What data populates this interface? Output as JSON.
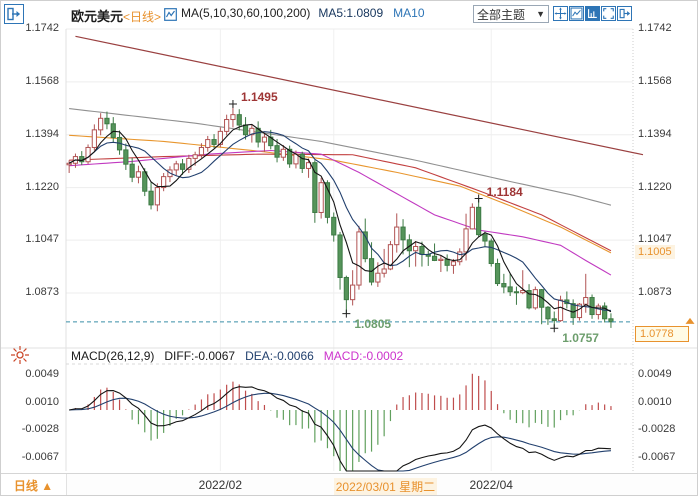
{
  "header": {
    "symbol": "欧元美元",
    "period_tag": "<日线>",
    "ma_settings": "MA(5,10,30,60,100,200)",
    "ma5_label": "MA5:1.0809",
    "ma10_label": "MA10",
    "theme_label": "全部主题",
    "theme_caret": "▼"
  },
  "toolbar": {
    "icons": [
      {
        "name": "move-tool-icon"
      },
      {
        "name": "line-chart-box-icon"
      },
      {
        "name": "axis-chart-icon",
        "selected": true
      },
      {
        "name": "fullscreen-icon"
      },
      {
        "name": "exit-panel-icon"
      }
    ]
  },
  "macd_header": {
    "params": "MACD(26,12,9)",
    "diff": "DIFF:-0.0067",
    "dea": "DEA:-0.0066",
    "macd": "MACD:-0.0002"
  },
  "footer": {
    "period_label": "日线 ▲"
  },
  "colors": {
    "accent_blue": "#2e75b6",
    "accent_orange": "#e8922e",
    "up_stroke": "#b05353",
    "down_fill": "#55945a",
    "down_stroke": "#3d7a44",
    "ma5": "#141414",
    "ma10": "#22406e",
    "trendline": "#9a4040",
    "dashed_price_line": "#3a8fa8",
    "macd_pos": "#bf4d4d",
    "macd_neg": "#61a05e",
    "diff_line": "#141414",
    "dea_line": "#22406e",
    "grid": "#ededed",
    "sun_icon": "#cb4729"
  },
  "chart_data": {
    "type": "candlestick",
    "title": "欧元美元 日线",
    "price_ticks": [
      "1.1742",
      "1.1568",
      "1.1394",
      "1.1220",
      "1.1047",
      "1.0873"
    ],
    "price_tick_values": [
      1.1742,
      1.1568,
      1.1394,
      1.122,
      1.1047,
      1.0873
    ],
    "macd_ticks": [
      "0.0049",
      "0.0010",
      "-0.0028",
      "-0.0067"
    ],
    "macd_tick_values": [
      0.0049,
      0.001,
      -0.0028,
      -0.0067
    ],
    "x_axis_labels": [
      {
        "label": "2022/02",
        "tick_index": 24,
        "align": "center",
        "highlight": false
      },
      {
        "label": "2022/03/01 星期二",
        "tick_index": 42,
        "align": "left",
        "highlight": true
      },
      {
        "label": "2022/04",
        "tick_index": 67,
        "align": "center",
        "highlight": false
      }
    ],
    "last_price": 1.0778,
    "last_price_tag": "1.0778",
    "ma100_last": 1.1005,
    "ma100_tag": "1.1005",
    "annotations": [
      {
        "text": "1.1495",
        "index": 26,
        "price": 1.1495,
        "type": "high"
      },
      {
        "text": "1.1184",
        "index": 65,
        "price": 1.1184,
        "type": "high"
      },
      {
        "text": "1.0805",
        "index": 44,
        "price": 1.0805,
        "type": "low"
      },
      {
        "text": "1.0757",
        "index": 77,
        "price": 1.0757,
        "type": "low"
      }
    ],
    "trendline": {
      "points": [
        [
          1,
          1.1718
        ],
        [
          86.5,
          1.1348
        ]
      ]
    },
    "overlays": [
      {
        "name": "MA200",
        "color": "#909090",
        "points": [
          [
            0,
            1.148
          ],
          [
            20,
            1.1432
          ],
          [
            40,
            1.1372
          ],
          [
            55,
            1.131
          ],
          [
            70,
            1.124
          ],
          [
            80,
            1.1195
          ],
          [
            86,
            1.1162
          ]
        ]
      },
      {
        "name": "MA100",
        "color": "#e8962e",
        "points": [
          [
            0,
            1.1392
          ],
          [
            15,
            1.1372
          ],
          [
            30,
            1.134
          ],
          [
            42,
            1.131
          ],
          [
            52,
            1.127
          ],
          [
            62,
            1.1225
          ],
          [
            70,
            1.116
          ],
          [
            78,
            1.109
          ],
          [
            86,
            1.1005
          ]
        ]
      },
      {
        "name": "MA60",
        "color": "#c24040",
        "points": [
          [
            0,
            1.131
          ],
          [
            15,
            1.1322
          ],
          [
            30,
            1.133
          ],
          [
            45,
            1.1328
          ],
          [
            55,
            1.1285
          ],
          [
            65,
            1.121
          ],
          [
            75,
            1.113
          ],
          [
            86,
            1.1012
          ]
        ]
      },
      {
        "name": "MA30",
        "color": "#c13ac1",
        "points": [
          [
            0,
            1.1292
          ],
          [
            10,
            1.1306
          ],
          [
            22,
            1.133
          ],
          [
            32,
            1.1342
          ],
          [
            40,
            1.133
          ],
          [
            46,
            1.127
          ],
          [
            52,
            1.12
          ],
          [
            58,
            1.113
          ],
          [
            65,
            1.108
          ],
          [
            72,
            1.1058
          ],
          [
            78,
            1.103
          ],
          [
            82,
            1.098
          ],
          [
            86,
            1.0932
          ]
        ]
      }
    ],
    "macd_params": [
      26,
      12,
      9
    ],
    "candles": [
      [
        1.1295,
        1.131,
        1.1268,
        1.13
      ],
      [
        1.13,
        1.1332,
        1.1285,
        1.1322
      ],
      [
        1.1322,
        1.134,
        1.1294,
        1.1305
      ],
      [
        1.1305,
        1.1362,
        1.1298,
        1.1352
      ],
      [
        1.1352,
        1.1428,
        1.1342,
        1.141
      ],
      [
        1.141,
        1.1465,
        1.1392,
        1.1448
      ],
      [
        1.1448,
        1.147,
        1.1412,
        1.143
      ],
      [
        1.143,
        1.1452,
        1.1368,
        1.1385
      ],
      [
        1.1385,
        1.1408,
        1.1328,
        1.1344
      ],
      [
        1.1344,
        1.1365,
        1.1278,
        1.1297
      ],
      [
        1.1297,
        1.1318,
        1.1238,
        1.1254
      ],
      [
        1.1254,
        1.1292,
        1.1234,
        1.1272
      ],
      [
        1.1272,
        1.1284,
        1.1192,
        1.1208
      ],
      [
        1.1208,
        1.1238,
        1.1148,
        1.1163
      ],
      [
        1.1163,
        1.1234,
        1.1142,
        1.122
      ],
      [
        1.122,
        1.1268,
        1.1208,
        1.1256
      ],
      [
        1.1256,
        1.129,
        1.1238,
        1.1278
      ],
      [
        1.1278,
        1.1308,
        1.126,
        1.1298
      ],
      [
        1.1298,
        1.1314,
        1.1262,
        1.128
      ],
      [
        1.128,
        1.1328,
        1.1268,
        1.1316
      ],
      [
        1.1316,
        1.1338,
        1.1292,
        1.1328
      ],
      [
        1.1328,
        1.1366,
        1.1318,
        1.1352
      ],
      [
        1.1352,
        1.139,
        1.1338,
        1.1378
      ],
      [
        1.1378,
        1.1396,
        1.135,
        1.1362
      ],
      [
        1.1362,
        1.1418,
        1.1352,
        1.1405
      ],
      [
        1.1405,
        1.146,
        1.1392,
        1.1444
      ],
      [
        1.1444,
        1.1495,
        1.1418,
        1.146
      ],
      [
        1.146,
        1.1478,
        1.1408,
        1.1426
      ],
      [
        1.1426,
        1.1452,
        1.1378,
        1.1394
      ],
      [
        1.1394,
        1.1428,
        1.1368,
        1.1415
      ],
      [
        1.1415,
        1.1438,
        1.1352,
        1.137
      ],
      [
        1.137,
        1.1398,
        1.1338,
        1.1386
      ],
      [
        1.1386,
        1.141,
        1.1346,
        1.1358
      ],
      [
        1.1358,
        1.138,
        1.1303,
        1.132
      ],
      [
        1.132,
        1.136,
        1.1308,
        1.1346
      ],
      [
        1.1346,
        1.1358,
        1.1285,
        1.1298
      ],
      [
        1.1298,
        1.1342,
        1.1283,
        1.133
      ],
      [
        1.133,
        1.1338,
        1.1268,
        1.1283
      ],
      [
        1.1283,
        1.1316,
        1.1252,
        1.1302
      ],
      [
        1.1302,
        1.131,
        1.1104,
        1.1138
      ],
      [
        1.1138,
        1.1252,
        1.1118,
        1.1236
      ],
      [
        1.1236,
        1.1244,
        1.1102,
        1.1122
      ],
      [
        1.1122,
        1.1138,
        1.1042,
        1.1064
      ],
      [
        1.1064,
        1.1074,
        1.0884,
        1.0924
      ],
      [
        1.0924,
        1.093,
        1.0805,
        1.0851
      ],
      [
        1.0851,
        1.0948,
        1.0832,
        1.0899
      ],
      [
        1.0899,
        1.1094,
        1.0884,
        1.1074
      ],
      [
        1.1074,
        1.1118,
        1.0974,
        1.0986
      ],
      [
        1.0986,
        1.104,
        1.0898,
        1.0909
      ],
      [
        1.0909,
        1.0974,
        1.0893,
        1.0938
      ],
      [
        1.0938,
        1.1018,
        1.0924,
        1.0952
      ],
      [
        1.0952,
        1.1044,
        1.0948,
        1.1032
      ],
      [
        1.1032,
        1.1135,
        1.1006,
        1.109
      ],
      [
        1.109,
        1.1116,
        1.1,
        1.1048
      ],
      [
        1.1048,
        1.1066,
        1.0958,
        1.1012
      ],
      [
        1.1012,
        1.1044,
        1.096,
        1.1026
      ],
      [
        1.1026,
        1.1042,
        1.096,
        1.1
      ],
      [
        1.1,
        1.1012,
        1.0962,
        1.0994
      ],
      [
        1.0994,
        1.1036,
        1.0978,
        1.098
      ],
      [
        1.098,
        1.0998,
        1.0942,
        1.0984
      ],
      [
        1.0984,
        1.1,
        1.0944,
        1.0964
      ],
      [
        1.0964,
        1.0985,
        1.0936,
        1.0976
      ],
      [
        1.0976,
        1.102,
        1.0964,
        1.1008
      ],
      [
        1.1008,
        1.1134,
        1.098,
        1.1084
      ],
      [
        1.1084,
        1.1168,
        1.1082,
        1.1155
      ],
      [
        1.1155,
        1.1184,
        1.1058,
        1.1065
      ],
      [
        1.1065,
        1.1075,
        1.1025,
        1.1044
      ],
      [
        1.1044,
        1.1052,
        1.096,
        1.097
      ],
      [
        1.097,
        1.0986,
        1.0896,
        1.0904
      ],
      [
        1.0904,
        1.0936,
        1.0872,
        1.0893
      ],
      [
        1.0893,
        1.0937,
        1.0863,
        1.0877
      ],
      [
        1.0877,
        1.0894,
        1.0834,
        1.0874
      ],
      [
        1.0874,
        1.0948,
        1.0869,
        1.0881
      ],
      [
        1.0881,
        1.0902,
        1.0819,
        1.0824
      ],
      [
        1.0824,
        1.0894,
        1.0818,
        1.0884
      ],
      [
        1.0884,
        1.0886,
        1.077,
        1.0826
      ],
      [
        1.0826,
        1.083,
        1.0768,
        1.0788
      ],
      [
        1.0788,
        1.0812,
        1.0757,
        1.0782
      ],
      [
        1.0782,
        1.0864,
        1.0778,
        1.085
      ],
      [
        1.085,
        1.0878,
        1.0822,
        1.0838
      ],
      [
        1.0838,
        1.0852,
        1.0768,
        1.0792
      ],
      [
        1.0792,
        1.084,
        1.0782,
        1.0836
      ],
      [
        1.0836,
        1.0936,
        1.0808,
        1.0858
      ],
      [
        1.0858,
        1.0868,
        1.0788,
        1.0802
      ],
      [
        1.0802,
        1.0838,
        1.0786,
        1.083
      ],
      [
        1.083,
        1.0842,
        1.0776,
        1.0788
      ],
      [
        1.0788,
        1.0806,
        1.0758,
        1.0778
      ]
    ]
  }
}
